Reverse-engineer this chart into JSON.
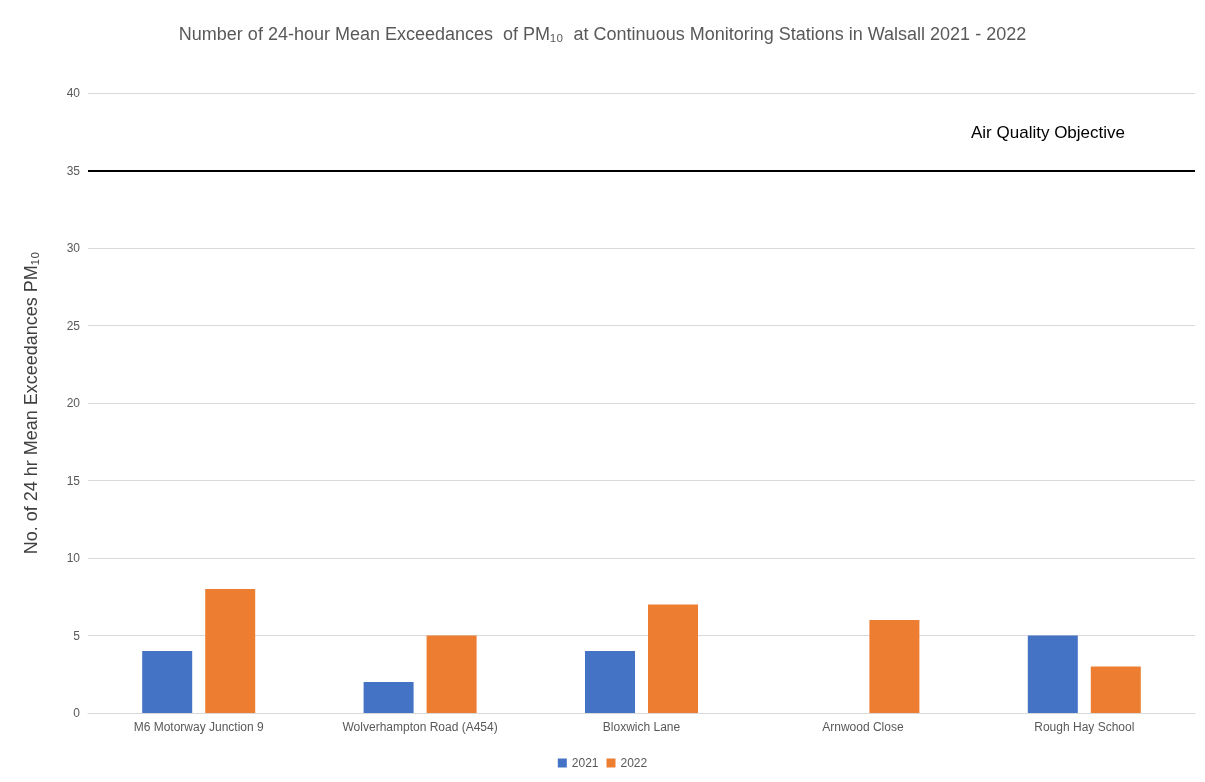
{
  "chart_data": {
    "type": "bar",
    "title": "Number of 24-hour Mean Exceedances  of PM₁₀  at Continuous Monitoring Stations in Walsall 2021 - 2022",
    "ylabel": "No. of 24 hr Mean Exceedances PM₁₀",
    "categories": [
      "M6 Motorway Junction 9",
      "Wolverhampton Road (A454)",
      "Bloxwich Lane",
      "Arnwood Close",
      "Rough Hay School"
    ],
    "series": [
      {
        "name": "2021",
        "color": "#4472c4",
        "values": [
          4,
          2,
          4,
          null,
          5
        ]
      },
      {
        "name": "2022",
        "color": "#ed7d31",
        "values": [
          8,
          5,
          7,
          6,
          3
        ]
      }
    ],
    "ylim": [
      0,
      40
    ],
    "yticks": [
      0,
      5,
      10,
      15,
      20,
      25,
      30,
      35,
      40
    ],
    "ref_lines": [
      {
        "axis": "y",
        "value": 35,
        "label": "Air Quality Objective",
        "color": "#000000"
      }
    ],
    "grid": "y",
    "legend": "bottom"
  }
}
